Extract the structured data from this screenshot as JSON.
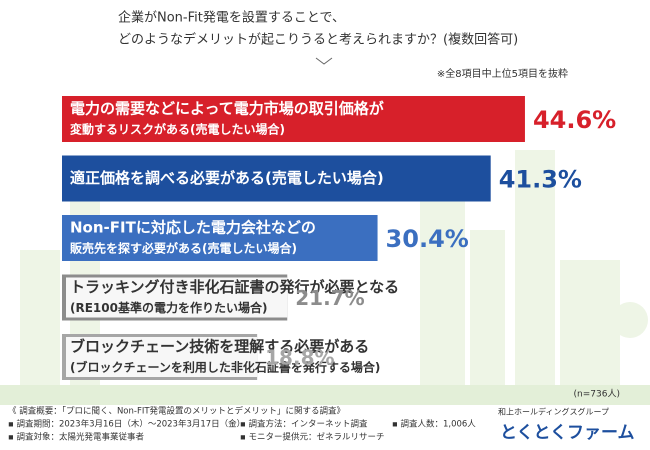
{
  "chart_data": {
    "type": "bar",
    "orientation": "horizontal",
    "title": [
      "企業がNon-Fit発電を設置することで、",
      "どのようなデメリットが起こりうると考えられますか？(複数回答可)"
    ],
    "note": "※全8項目中上位5項目を抜粋",
    "categories": [
      [
        "電力の需要などによって電力市場の取引価格が",
        "変動するリスクがある(売電したい場合)"
      ],
      [
        "適正価格を調べる必要がある(売電したい場合)"
      ],
      [
        "Non-FITに対応した電力会社などの",
        "販売先を探す必要がある(売電したい場合)"
      ],
      [
        "トラッキング付き非化石証書の発行が必要となる",
        "(RE100基準の電力を作りたい場合)"
      ],
      [
        "ブロックチェーン技術を理解する必要がある",
        "(ブロックチェーンを利用した非化石証書を発行する場合)"
      ]
    ],
    "values": [
      44.6,
      41.3,
      30.4,
      21.7,
      18.8
    ],
    "value_labels": [
      "44.6%",
      "41.3%",
      "30.4%",
      "21.7%",
      "18.8%"
    ],
    "colors": [
      "#d7202a",
      "#1d4f9e",
      "#3b6fc0",
      "#8c8c8c",
      "#a6a6a6"
    ],
    "sample": "(n=736人)",
    "footer": [
      "《 調査概要：「プロに聞く、Non-FIT発電設置のメリットとデメリット」に関する調査》",
      "▪ 調査期間：2023年3月16日（木）〜2023年3月17日（金）",
      "▪ 調査方法：インターネット調査",
      "▪ 調査人数：1,006人",
      "▪ 調査対象：太陽光発電事業従事者",
      "▪ モニター提供元：ゼネラルリサーチ"
    ],
    "logo": {
      "group": "和上ホールディングスグループ",
      "name": "とくとくファーム"
    }
  }
}
